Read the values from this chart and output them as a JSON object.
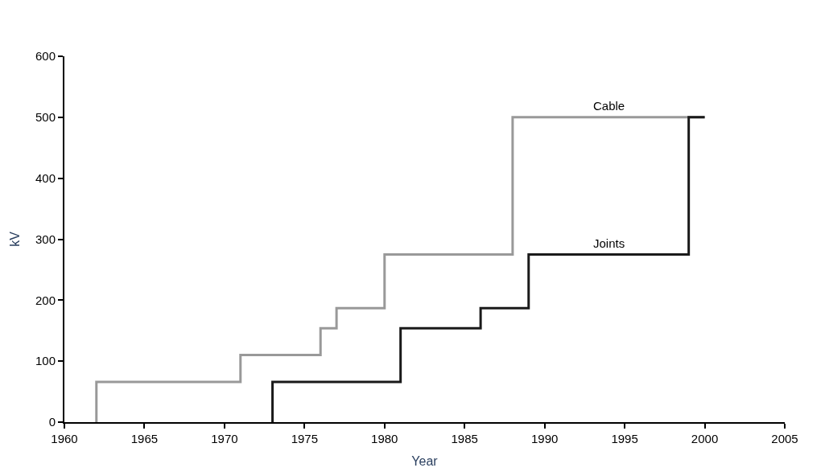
{
  "chart_data": {
    "type": "step",
    "xlabel": "Year",
    "ylabel": "kV",
    "xlim": [
      1960,
      2005
    ],
    "xticks": [
      1960,
      1965,
      1970,
      1975,
      1980,
      1985,
      1990,
      1995,
      2000,
      2005
    ],
    "ylim": [
      0,
      600
    ],
    "yticks": [
      0,
      100,
      200,
      300,
      400,
      500,
      600
    ],
    "grid": false,
    "legend": false,
    "series": [
      {
        "name": "Cable",
        "color": "#999999",
        "x": [
          1962,
          1962,
          1971,
          1976,
          1977,
          1980,
          1988,
          2000
        ],
        "values": [
          0,
          66,
          110,
          154,
          187,
          275,
          500,
          500
        ]
      },
      {
        "name": "Joints",
        "color": "#1a1a1a",
        "x": [
          1973,
          1973,
          1981,
          1986,
          1989,
          1999,
          2000
        ],
        "values": [
          0,
          66,
          154,
          187,
          275,
          500,
          500
        ]
      }
    ]
  }
}
